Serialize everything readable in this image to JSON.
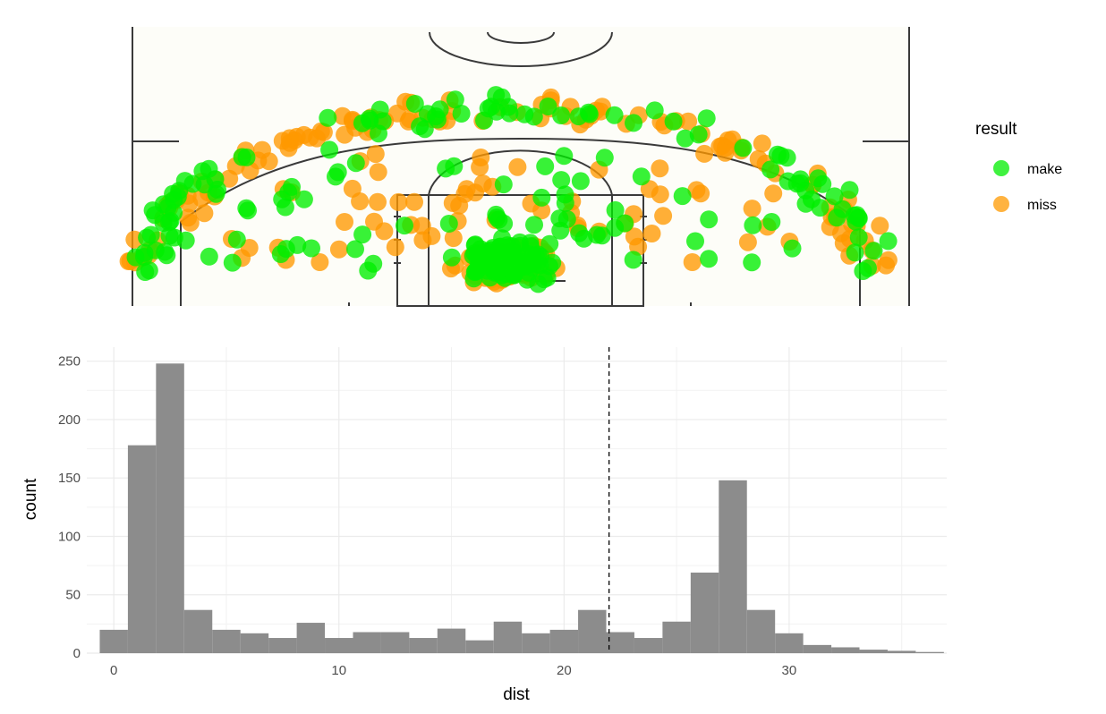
{
  "chart_data": [
    {
      "type": "scatter",
      "legend": {
        "title": "result",
        "placement": "right",
        "entries": [
          {
            "label": "make",
            "color": "#00ee00"
          },
          {
            "label": "miss",
            "color": "#ff9900"
          }
        ]
      },
      "series": [
        {
          "name": "make",
          "color": "#00ee00"
        },
        {
          "name": "miss",
          "color": "#ff9900"
        }
      ],
      "background": "#fdfdf8",
      "notes_on_density": "points concentrated near the basket and along the three-point arc"
    },
    {
      "type": "bar",
      "subtype": "histogram",
      "xlabel": "dist",
      "ylabel": "count",
      "xlim": [
        -1.2,
        37
      ],
      "ylim": [
        0,
        262
      ],
      "x_ticks": [
        0,
        10,
        20,
        30
      ],
      "y_ticks": [
        0,
        50,
        100,
        150,
        200,
        250
      ],
      "grid": true,
      "bar_color": "#8c8c8c",
      "bin_width": 1.25,
      "bin_start": -0.625,
      "counts": [
        20,
        178,
        248,
        37,
        20,
        17,
        13,
        26,
        13,
        18,
        18,
        13,
        21,
        11,
        27,
        17,
        20,
        37,
        18,
        13,
        27,
        69,
        148,
        37,
        17,
        7,
        5,
        3,
        2,
        1
      ],
      "vline_x": 22,
      "vline_style": "dashed"
    }
  ]
}
